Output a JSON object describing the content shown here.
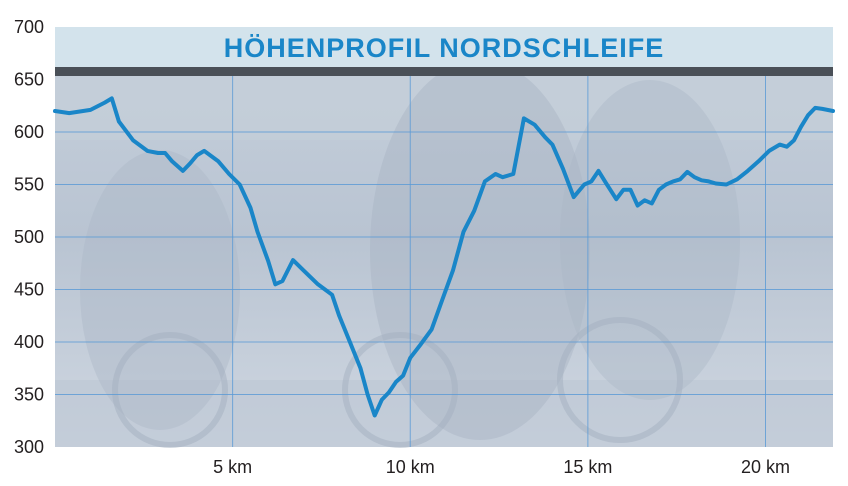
{
  "chart_data": {
    "type": "line",
    "title": "HÖHENPROFIL NORDSCHLEIFE",
    "xlabel": "",
    "ylabel": "",
    "xlim": [
      0,
      21.9
    ],
    "ylim": [
      300,
      700
    ],
    "x_ticks": [
      {
        "value": 5,
        "label": "5 km"
      },
      {
        "value": 10,
        "label": "10 km"
      },
      {
        "value": 15,
        "label": "15 km"
      },
      {
        "value": 20,
        "label": "20 km"
      }
    ],
    "y_ticks": [
      {
        "value": 300,
        "label": "300"
      },
      {
        "value": 350,
        "label": "350"
      },
      {
        "value": 400,
        "label": "400"
      },
      {
        "value": 450,
        "label": "450"
      },
      {
        "value": 500,
        "label": "500"
      },
      {
        "value": 550,
        "label": "550"
      },
      {
        "value": 600,
        "label": "600"
      },
      {
        "value": 650,
        "label": "650"
      },
      {
        "value": 700,
        "label": "700"
      }
    ],
    "grid": true,
    "line_color": "#1a86c8",
    "series": [
      {
        "x": [
          0.0,
          0.4,
          1.0,
          1.4,
          1.6,
          1.8,
          2.2,
          2.6,
          2.9,
          3.1,
          3.3,
          3.6,
          3.8,
          4.0,
          4.2,
          4.6,
          4.9,
          5.2,
          5.5,
          5.7,
          6.0,
          6.2,
          6.4,
          6.7,
          7.0,
          7.4,
          7.6,
          7.8,
          8.0,
          8.3,
          8.6,
          8.8,
          9.0,
          9.2,
          9.4,
          9.6,
          9.8,
          10.0,
          10.3,
          10.6,
          10.9,
          11.2,
          11.5,
          11.8,
          12.1,
          12.4,
          12.6,
          12.9,
          13.2,
          13.5,
          13.8,
          14.0,
          14.3,
          14.6,
          14.9,
          15.1,
          15.3,
          15.5,
          15.8,
          16.0,
          16.2,
          16.4,
          16.6,
          16.8,
          17.0,
          17.2,
          17.4,
          17.6,
          17.8,
          18.0,
          18.2,
          18.4,
          18.6,
          18.9,
          19.2,
          19.5,
          19.8,
          20.1,
          20.4,
          20.6,
          20.8,
          21.0,
          21.2,
          21.4,
          21.6,
          21.9
        ],
        "y": [
          620,
          618,
          621,
          628,
          632,
          610,
          592,
          582,
          580,
          580,
          572,
          563,
          570,
          578,
          582,
          572,
          560,
          550,
          528,
          505,
          477,
          455,
          458,
          478,
          468,
          455,
          450,
          445,
          425,
          400,
          375,
          350,
          330,
          345,
          352,
          362,
          368,
          385,
          398,
          412,
          440,
          468,
          505,
          525,
          553,
          560,
          557,
          560,
          613,
          607,
          595,
          588,
          565,
          538,
          550,
          553,
          563,
          552,
          536,
          545,
          545,
          530,
          535,
          532,
          545,
          550,
          553,
          555,
          562,
          557,
          554,
          553,
          551,
          550,
          555,
          563,
          572,
          582,
          588,
          586,
          592,
          605,
          616,
          623,
          622,
          620
        ]
      }
    ]
  }
}
